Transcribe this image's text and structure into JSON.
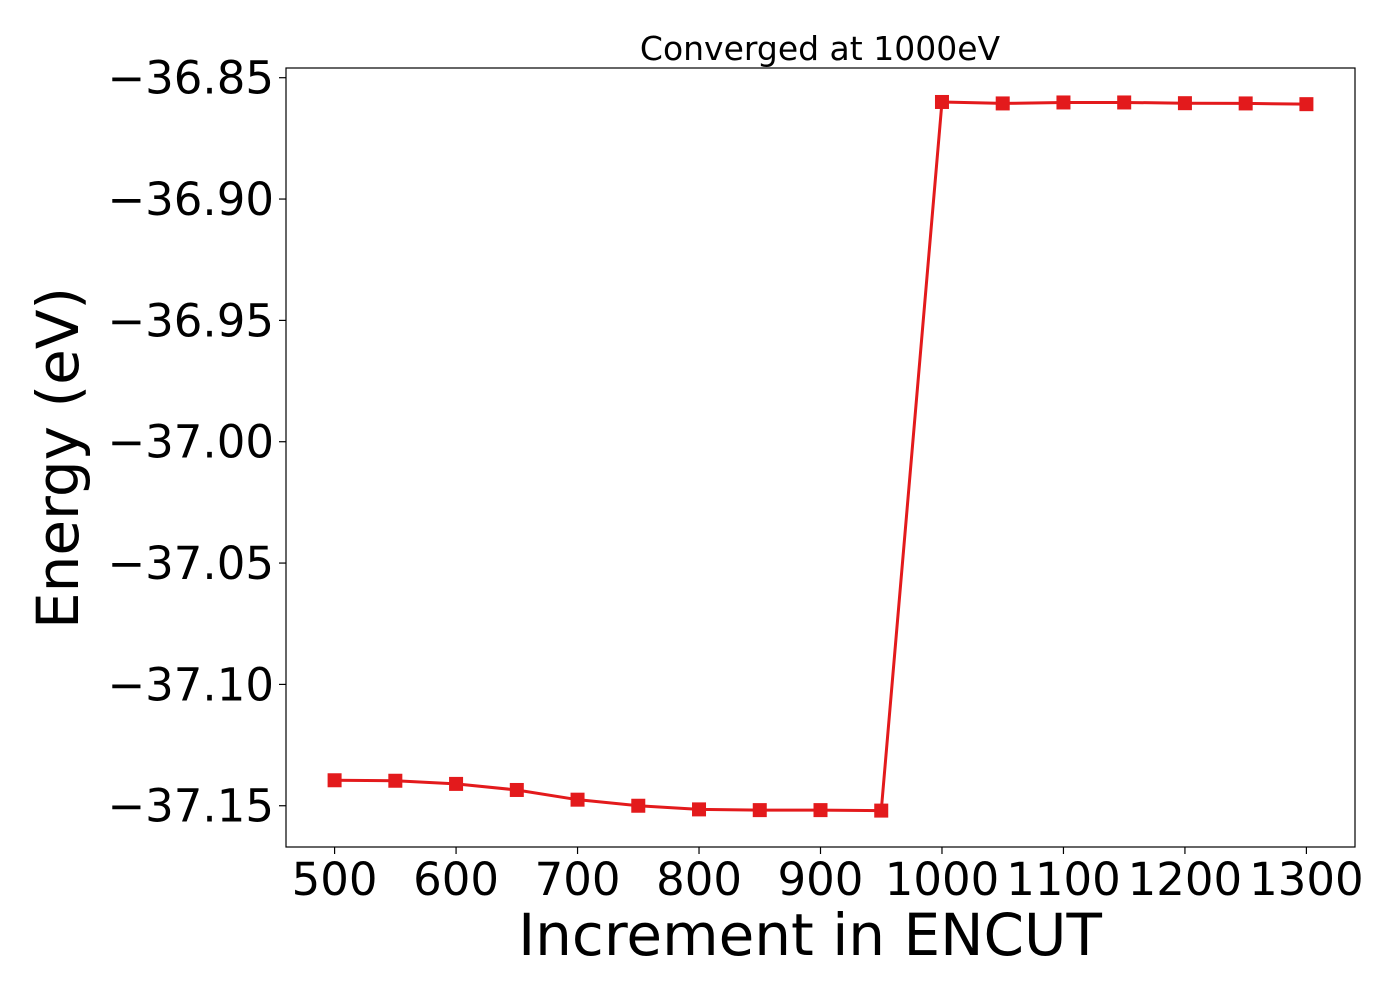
{
  "chart_data": {
    "type": "line",
    "title": "Converged at 1000eV",
    "xlabel": "Increment in ENCUT",
    "ylabel": "Energy (eV)",
    "xlim": [
      460,
      1340
    ],
    "ylim": [
      -37.167,
      -36.846
    ],
    "xticks": [
      500,
      600,
      700,
      800,
      900,
      1000,
      1100,
      1200,
      1300
    ],
    "xtick_labels": [
      "500",
      "600",
      "700",
      "800",
      "900",
      "1000",
      "1100",
      "1200",
      "1300"
    ],
    "yticks": [
      -36.85,
      -36.9,
      -36.95,
      -37.0,
      -37.05,
      -37.1,
      -37.15
    ],
    "ytick_labels": [
      "−36.85",
      "−36.90",
      "−36.95",
      "−37.00",
      "−37.05",
      "−37.10",
      "−37.15"
    ],
    "grid": false,
    "legend": null,
    "series": [
      {
        "color": "#e31a1c",
        "marker": "square",
        "x": [
          500,
          550,
          600,
          650,
          700,
          750,
          800,
          850,
          900,
          950,
          1000,
          1050,
          1100,
          1150,
          1200,
          1250,
          1300
        ],
        "y": [
          -37.1395,
          -37.1397,
          -37.141,
          -37.1435,
          -37.1475,
          -37.15,
          -37.1515,
          -37.1518,
          -37.1518,
          -37.152,
          -36.86,
          -36.8606,
          -36.8602,
          -36.8602,
          -36.8605,
          -36.8606,
          -36.8609
        ]
      }
    ]
  }
}
